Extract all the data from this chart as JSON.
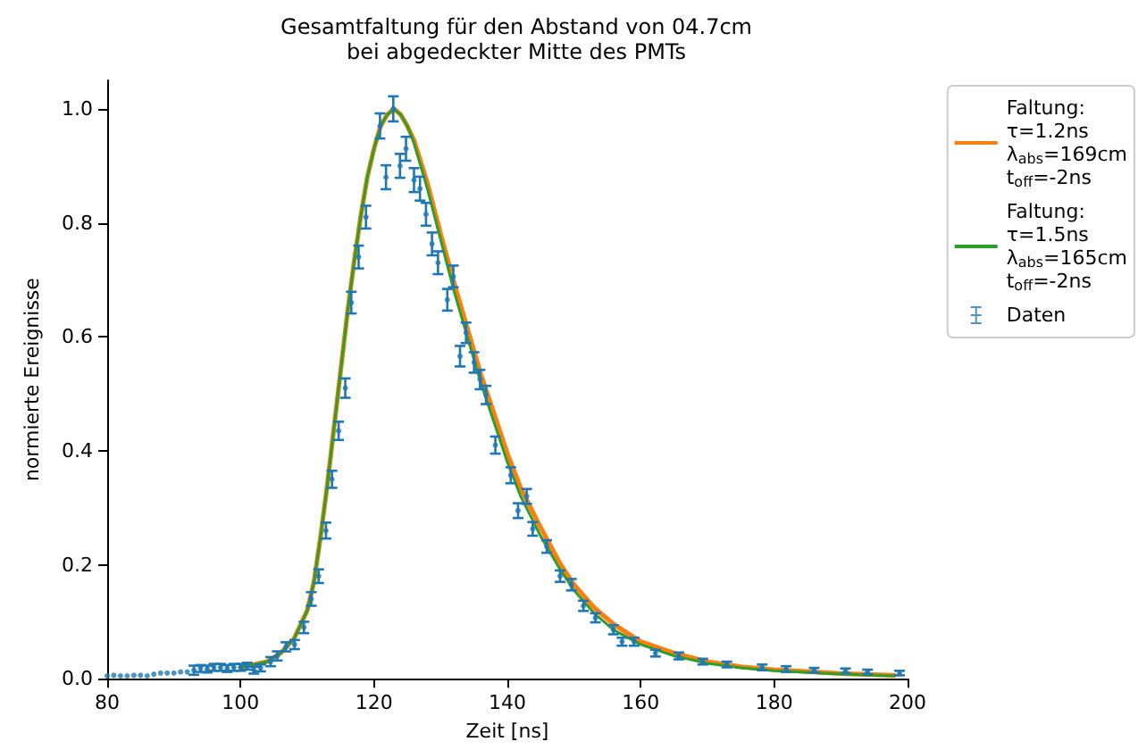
{
  "chart_data": {
    "type": "line",
    "title": "Gesamtfaltung für den Abstand von 04.7cm",
    "subtitle": "bei abgedeckter Mitte des PMTs",
    "xlabel": "Zeit [ns]",
    "ylabel": "normierte Ereignisse",
    "xlim": [
      80,
      200
    ],
    "xticks": [
      80,
      100,
      120,
      140,
      160,
      180,
      200
    ],
    "ylim": [
      0,
      1.05
    ],
    "yticks": [
      {
        "value": 0,
        "label": "0.0"
      },
      0.2,
      0.4,
      0.6,
      0.8,
      {
        "value": 1,
        "label": "1.0"
      }
    ],
    "grid": false,
    "legend": "right",
    "marker": "none",
    "line_style": "solid",
    "series": [
      {
        "name": "Faltung:\nτ=1.2ns\nλ$_{abs}$=169cm\nt$_{off}$=-2ns",
        "color": "#ff7f0e",
        "x": [
          100,
          104,
          106,
          108,
          110,
          111,
          112,
          113,
          114,
          115,
          116,
          117,
          118,
          119,
          120,
          121,
          122,
          123,
          124,
          125,
          126,
          128,
          130,
          132,
          134,
          136,
          138,
          140,
          142,
          145,
          148,
          150,
          153,
          156,
          160,
          165,
          170,
          175,
          180,
          190,
          198
        ],
        "values": [
          0.02,
          0.03,
          0.045,
          0.07,
          0.12,
          0.17,
          0.25,
          0.34,
          0.44,
          0.54,
          0.64,
          0.73,
          0.81,
          0.88,
          0.93,
          0.97,
          0.99,
          1.0,
          0.99,
          0.97,
          0.945,
          0.87,
          0.78,
          0.695,
          0.615,
          0.535,
          0.465,
          0.395,
          0.335,
          0.265,
          0.2,
          0.165,
          0.125,
          0.095,
          0.065,
          0.045,
          0.03,
          0.021,
          0.016,
          0.009,
          0.006
        ]
      },
      {
        "name": "Faltung:\nτ=1.5ns\nλ$_{abs}$=165cm\nt$_{off}$=-2ns",
        "color": "#2ca02c",
        "x": [
          100,
          104,
          106,
          108,
          110,
          111,
          112,
          113,
          114,
          115,
          116,
          117,
          118,
          119,
          120,
          121,
          122,
          123,
          124,
          125,
          126,
          128,
          130,
          132,
          134,
          136,
          138,
          140,
          142,
          145,
          148,
          150,
          153,
          156,
          160,
          165,
          170,
          175,
          180,
          190,
          198
        ],
        "values": [
          0.02,
          0.03,
          0.045,
          0.07,
          0.12,
          0.17,
          0.25,
          0.34,
          0.44,
          0.54,
          0.64,
          0.73,
          0.81,
          0.88,
          0.93,
          0.97,
          0.99,
          1.0,
          0.99,
          0.97,
          0.94,
          0.86,
          0.77,
          0.68,
          0.6,
          0.52,
          0.45,
          0.38,
          0.32,
          0.25,
          0.19,
          0.155,
          0.115,
          0.085,
          0.06,
          0.04,
          0.027,
          0.019,
          0.014,
          0.008,
          0.005
        ]
      },
      {
        "name": "Daten",
        "type": "scatter",
        "color": "#1f77b4",
        "x": [
          80,
          81,
          82,
          83,
          84,
          85,
          86,
          87,
          88,
          89,
          90,
          91,
          92,
          93,
          94,
          95,
          96,
          97,
          98,
          99,
          100,
          101,
          102,
          103,
          104.5,
          105.5,
          106.8,
          108.1,
          109.5,
          110.6,
          111.7,
          112.8,
          113.7,
          114.7,
          115.7,
          116.6,
          117.7,
          118.8,
          120.9,
          121.8,
          122.9,
          123.9,
          124.8,
          126,
          126.9,
          127.8,
          128.7,
          129.6,
          131,
          131.9,
          132.9,
          133.8,
          135,
          135.9,
          136.8,
          138.2,
          140.5,
          141.6,
          142.9,
          143.8,
          145.9,
          147.9,
          149.6,
          151.4,
          153.2,
          155.9,
          157.2,
          159,
          162.2,
          165.7,
          169.3,
          172.9,
          178.2,
          181.8,
          186,
          190.7,
          194,
          198.8
        ],
        "values": [
          0.005,
          0.006,
          0.005,
          0.005,
          0.006,
          0.006,
          0.005,
          0.008,
          0.01,
          0.01,
          0.01,
          0.012,
          0.012,
          0.015,
          0.018,
          0.017,
          0.02,
          0.02,
          0.018,
          0.02,
          0.02,
          0.022,
          0.015,
          0.019,
          0.03,
          0.04,
          0.056,
          0.06,
          0.09,
          0.14,
          0.18,
          0.26,
          0.35,
          0.435,
          0.51,
          0.66,
          0.74,
          0.81,
          0.97,
          0.88,
          1.0,
          0.9,
          0.93,
          0.875,
          0.86,
          0.815,
          0.763,
          0.73,
          0.665,
          0.706,
          0.566,
          0.607,
          0.555,
          0.525,
          0.498,
          0.41,
          0.357,
          0.295,
          0.32,
          0.263,
          0.232,
          0.18,
          0.165,
          0.128,
          0.107,
          0.086,
          0.065,
          0.065,
          0.045,
          0.04,
          0.03,
          0.025,
          0.02,
          0.017,
          0.015,
          0.014,
          0.012,
          0.01
        ],
        "errors": [
          null,
          null,
          null,
          null,
          null,
          null,
          null,
          null,
          null,
          null,
          null,
          null,
          null,
          0.008,
          0.006,
          0.006,
          0.006,
          0.006,
          0.006,
          0.006,
          0.006,
          0.006,
          0.006,
          0.006,
          0.008,
          0.008,
          0.008,
          0.008,
          0.01,
          0.012,
          0.012,
          0.014,
          0.015,
          0.016,
          0.017,
          0.019,
          0.02,
          0.02,
          0.022,
          0.021,
          0.022,
          0.021,
          0.021,
          0.021,
          0.021,
          0.02,
          0.02,
          0.02,
          0.019,
          0.019,
          0.018,
          0.018,
          0.018,
          0.017,
          0.016,
          0.015,
          0.014,
          0.013,
          0.013,
          0.012,
          0.011,
          0.01,
          0.01,
          0.009,
          0.008,
          0.008,
          0.007,
          0.007,
          0.006,
          0.006,
          0.005,
          0.005,
          0.005,
          0.005,
          0.004,
          0.004,
          0.004,
          0.004
        ]
      }
    ]
  }
}
